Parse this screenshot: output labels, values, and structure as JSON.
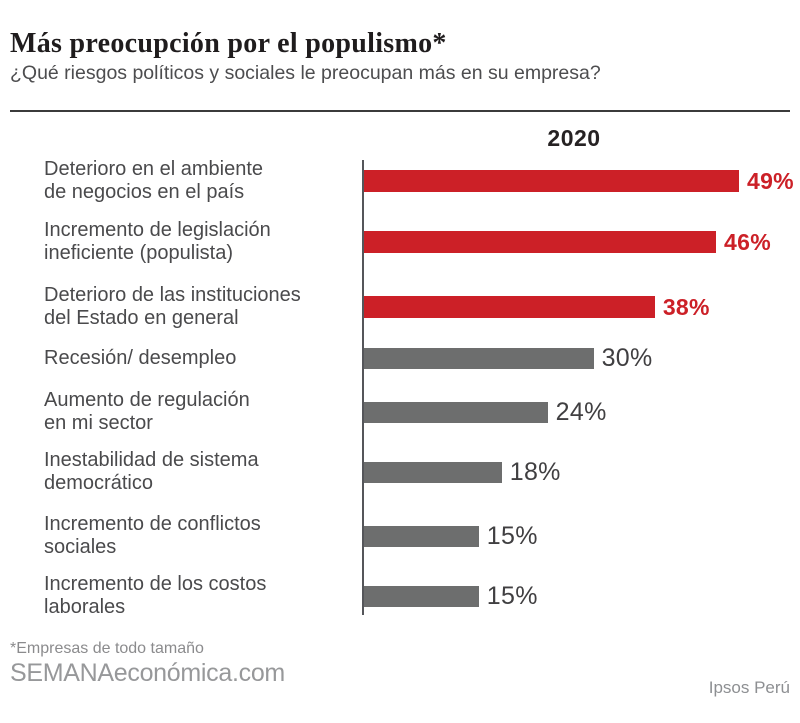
{
  "header": {
    "title": "Más preocupción por el populismo*",
    "subtitle": "¿Qué riesgos políticos y sociales le preocupan más en su empresa?"
  },
  "chart_data": {
    "type": "bar",
    "orientation": "horizontal",
    "title": "2020",
    "unit": "%",
    "xlim": [
      0,
      49
    ],
    "grid": false,
    "highlight_color": "#cc2027",
    "default_color": "#6d6e6e",
    "categories": [
      "Deterioro en el ambiente de negocios en el país",
      "Incremento de legislación ineficiente (populista)",
      "Deterioro de las instituciones del Estado en general",
      "Recesión/ desempleo",
      "Aumento de regulación en mi sector",
      "Inestabilidad de sistema democrático",
      "Incremento de conflictos sociales",
      "Incremento de los costos laborales"
    ],
    "values": [
      49,
      46,
      38,
      30,
      24,
      18,
      15,
      15
    ],
    "rows": [
      {
        "lines": [
          "Deterioro en el ambiente",
          "de negocios en el país"
        ],
        "value": 49,
        "label": "49%",
        "highlighted": true
      },
      {
        "lines": [
          "Incremento de legislación",
          "ineficiente (populista)"
        ],
        "value": 46,
        "label": "46%",
        "highlighted": true
      },
      {
        "lines": [
          "Deterioro de las instituciones",
          "del Estado en general"
        ],
        "value": 38,
        "label": "38%",
        "highlighted": true
      },
      {
        "lines": [
          "Recesión/ desempleo"
        ],
        "value": 30,
        "label": "30%",
        "highlighted": false
      },
      {
        "lines": [
          "Aumento de regulación",
          "en mi sector"
        ],
        "value": 24,
        "label": "24%",
        "highlighted": false
      },
      {
        "lines": [
          "Inestabilidad de sistema",
          "democrático"
        ],
        "value": 18,
        "label": "18%",
        "highlighted": false
      },
      {
        "lines": [
          "Incremento de conflictos",
          "sociales"
        ],
        "value": 15,
        "label": "15%",
        "highlighted": false
      },
      {
        "lines": [
          "Incremento de los costos",
          "laborales"
        ],
        "value": 15,
        "label": "15%",
        "highlighted": false
      }
    ]
  },
  "footer": {
    "note": "*Empresas de todo tamaño",
    "publisher": "SEMANAeconómica.com",
    "source": "Ipsos Perú"
  }
}
